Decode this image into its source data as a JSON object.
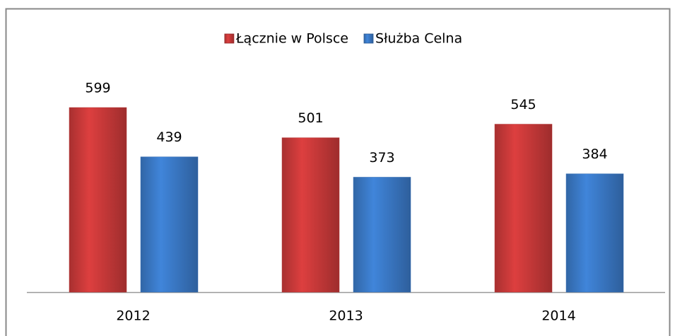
{
  "chart_data": {
    "type": "bar",
    "categories": [
      "2012",
      "2013",
      "2014"
    ],
    "series": [
      {
        "name": "Łącznie w Polsce",
        "color": "#d23c3c",
        "values": [
          599,
          501,
          545
        ]
      },
      {
        "name": "Służba Celna",
        "color": "#3d7fd0",
        "values": [
          439,
          373,
          384
        ]
      }
    ],
    "ylim": [
      0,
      700
    ],
    "legend": "top"
  }
}
